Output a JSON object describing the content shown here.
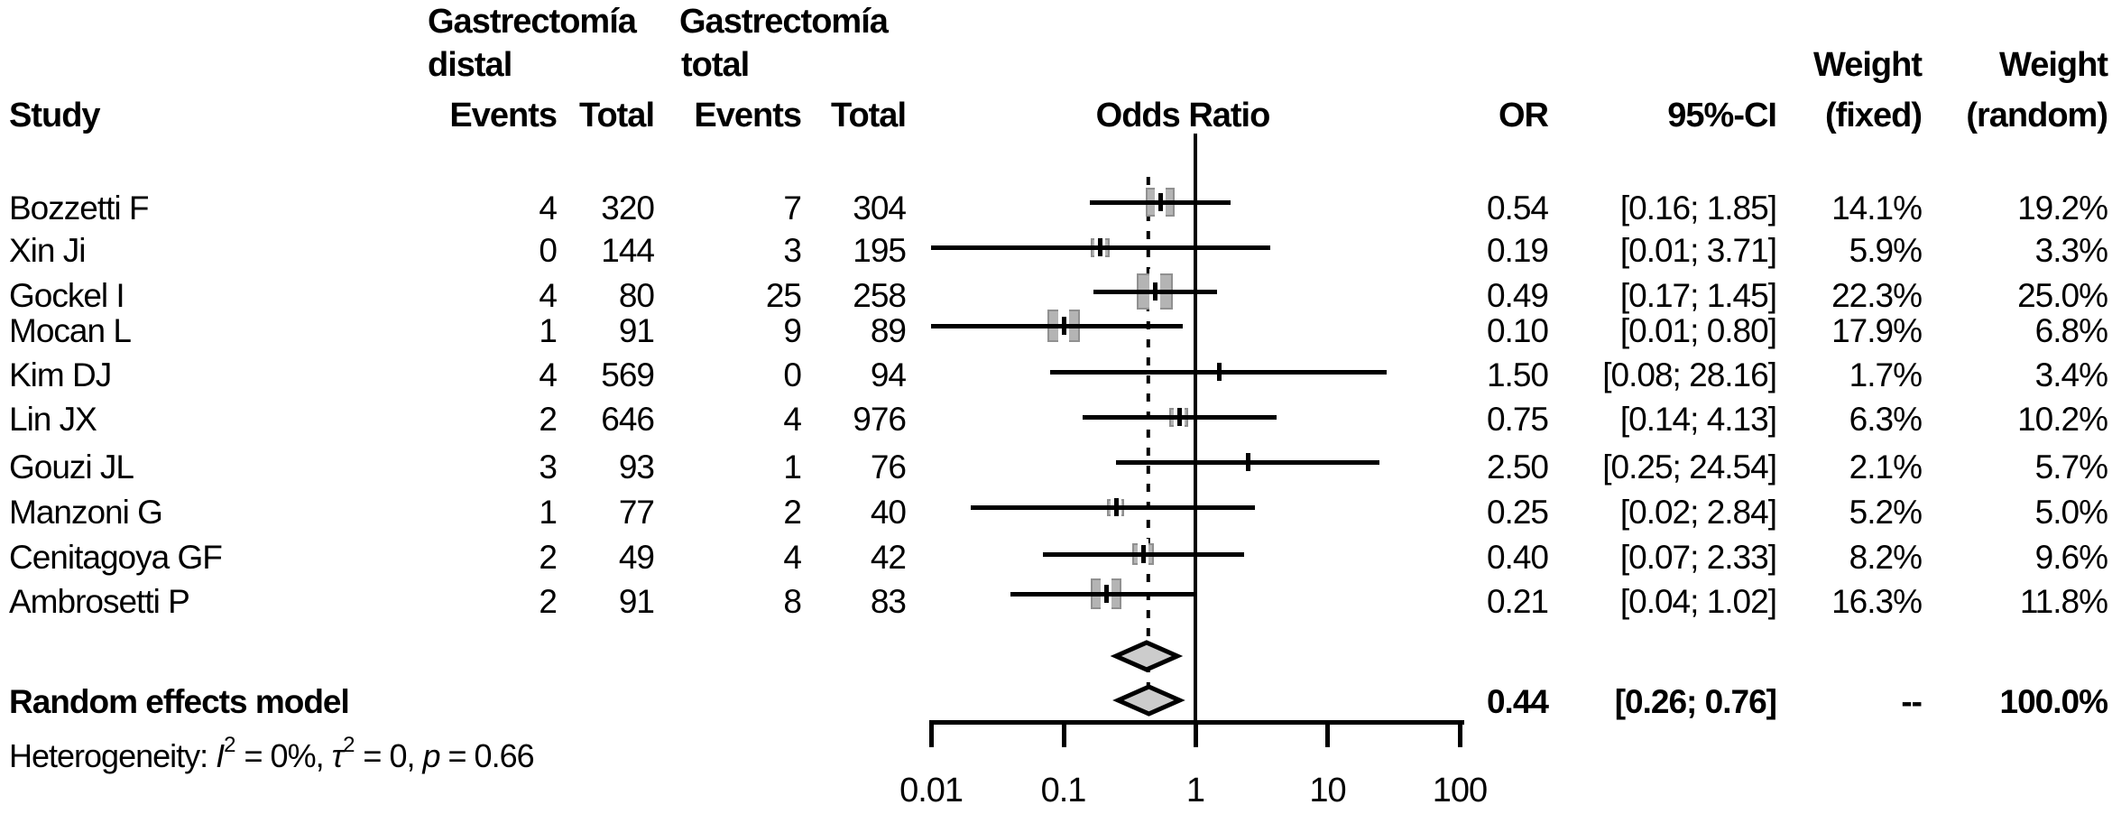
{
  "header": {
    "study": "Study",
    "group1": {
      "name": "Gastrectomía",
      "sub": "distal",
      "events": "Events",
      "total": "Total"
    },
    "group2": {
      "name": "Gastrectomía",
      "sub": "total",
      "events": "Events",
      "total": "Total"
    },
    "plot_title": "Odds Ratio",
    "or": "OR",
    "ci": "95%-CI",
    "weight_word": "Weight",
    "fixed_sub": "(fixed)",
    "random_sub": "(random)"
  },
  "chart_data": {
    "type": "forest",
    "x_axis": {
      "scale": "log10",
      "ticks": [
        0.01,
        0.1,
        1,
        10,
        100
      ],
      "ref_line": 1,
      "dashed_line_at": 0.44,
      "grid": false
    },
    "studies": [
      {
        "study": "Bozzetti F",
        "events1": 4,
        "total1": 320,
        "events2": 7,
        "total2": 304,
        "or": 0.54,
        "ci_lo": 0.16,
        "ci_hi": 1.85,
        "or_label": "0.54",
        "ci_label": "[0.16; 1.85]",
        "w_fixed": "14.1%",
        "w_random": "19.2%",
        "w_fixed_num": 14.1
      },
      {
        "study": "Xin Ji",
        "events1": 0,
        "total1": 144,
        "events2": 3,
        "total2": 195,
        "or": 0.19,
        "ci_lo": 0.01,
        "ci_hi": 3.71,
        "or_label": "0.19",
        "ci_label": "[0.01; 3.71]",
        "w_fixed": "5.9%",
        "w_random": "3.3%",
        "w_fixed_num": 5.9
      },
      {
        "study": "Gockel I",
        "events1": 4,
        "total1": 80,
        "events2": 25,
        "total2": 258,
        "or": 0.49,
        "ci_lo": 0.17,
        "ci_hi": 1.45,
        "or_label": "0.49",
        "ci_label": "[0.17; 1.45]",
        "w_fixed": "22.3%",
        "w_random": "25.0%",
        "w_fixed_num": 22.3
      },
      {
        "study": "Mocan L",
        "events1": 1,
        "total1": 91,
        "events2": 9,
        "total2": 89,
        "or": 0.1,
        "ci_lo": 0.01,
        "ci_hi": 0.8,
        "or_label": "0.10",
        "ci_label": "[0.01; 0.80]",
        "w_fixed": "17.9%",
        "w_random": "6.8%",
        "w_fixed_num": 17.9
      },
      {
        "study": "Kim DJ",
        "events1": 4,
        "total1": 569,
        "events2": 0,
        "total2": 94,
        "or": 1.5,
        "ci_lo": 0.08,
        "ci_hi": 28.16,
        "or_label": "1.50",
        "ci_label": "[0.08; 28.16]",
        "w_fixed": "1.7%",
        "w_random": "3.4%",
        "w_fixed_num": 1.7
      },
      {
        "study": "Lin JX",
        "events1": 2,
        "total1": 646,
        "events2": 4,
        "total2": 976,
        "or": 0.75,
        "ci_lo": 0.14,
        "ci_hi": 4.13,
        "or_label": "0.75",
        "ci_label": "[0.14; 4.13]",
        "w_fixed": "6.3%",
        "w_random": "10.2%",
        "w_fixed_num": 6.3
      },
      {
        "study": "Gouzi JL",
        "events1": 3,
        "total1": 93,
        "events2": 1,
        "total2": 76,
        "or": 2.5,
        "ci_lo": 0.25,
        "ci_hi": 24.54,
        "or_label": "2.50",
        "ci_label": "[0.25; 24.54]",
        "w_fixed": "2.1%",
        "w_random": "5.7%",
        "w_fixed_num": 2.1
      },
      {
        "study": "Manzoni G",
        "events1": 1,
        "total1": 77,
        "events2": 2,
        "total2": 40,
        "or": 0.25,
        "ci_lo": 0.02,
        "ci_hi": 2.84,
        "or_label": "0.25",
        "ci_label": "[0.02; 2.84]",
        "w_fixed": "5.2%",
        "w_random": "5.0%",
        "w_fixed_num": 5.2
      },
      {
        "study": "Cenitagoya GF",
        "events1": 2,
        "total1": 49,
        "events2": 4,
        "total2": 42,
        "or": 0.4,
        "ci_lo": 0.07,
        "ci_hi": 2.33,
        "or_label": "0.40",
        "ci_label": "[0.07; 2.33]",
        "w_fixed": "8.2%",
        "w_random": "9.6%",
        "w_fixed_num": 8.2
      },
      {
        "study": "Ambrosetti P",
        "events1": 2,
        "total1": 91,
        "events2": 8,
        "total2": 83,
        "or": 0.21,
        "ci_lo": 0.04,
        "ci_hi": 1.02,
        "or_label": "0.21",
        "ci_label": "[0.04; 1.02]",
        "w_fixed": "16.3%",
        "w_random": "11.8%",
        "w_fixed_num": 16.3
      }
    ],
    "fixed_diamond": {
      "or": 0.43,
      "ci_lo": 0.25,
      "ci_hi": 0.73
    },
    "summary": {
      "label": "Random effects model",
      "or": 0.44,
      "ci_lo": 0.26,
      "ci_hi": 0.76,
      "or_label": "0.44",
      "ci_label": "[0.26; 0.76]",
      "w_fixed": "--",
      "w_random": "100.0%"
    },
    "heterogeneity": {
      "p1": "Heterogeneity: ",
      "i": "I",
      "s1": "2",
      "p2": " = 0%, ",
      "tau": "τ",
      "s2": "2",
      "p3": " = 0, ",
      "p": "p",
      "p4": " = 0.66"
    }
  }
}
